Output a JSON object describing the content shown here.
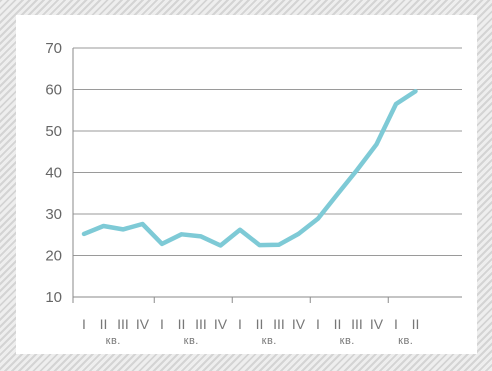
{
  "chart_data": {
    "type": "line",
    "title": "",
    "xlabel": "",
    "ylabel": "",
    "ylim": [
      10,
      70
    ],
    "yticks": [
      10,
      20,
      30,
      40,
      50,
      60,
      70
    ],
    "grid": true,
    "line_color": "#7ecad6",
    "groups": [
      {
        "quarters": [
          "I",
          "II",
          "III",
          "IV"
        ],
        "label": "кв."
      },
      {
        "quarters": [
          "I",
          "II",
          "III",
          "IV"
        ],
        "label": "кв."
      },
      {
        "quarters": [
          "I",
          "II",
          "III",
          "IV"
        ],
        "label": "кв."
      },
      {
        "quarters": [
          "I",
          "II",
          "III",
          "IV"
        ],
        "label": "кв."
      },
      {
        "quarters": [
          "I",
          "II"
        ],
        "label": "кв."
      }
    ],
    "series": [
      {
        "values": [
          25.2,
          27.1,
          26.3,
          27.6,
          22.8,
          25.1,
          24.6,
          22.4,
          26.2,
          22.5,
          22.6,
          25.2,
          28.9,
          34.8,
          40.6,
          46.8,
          56.5,
          59.6
        ]
      }
    ]
  }
}
